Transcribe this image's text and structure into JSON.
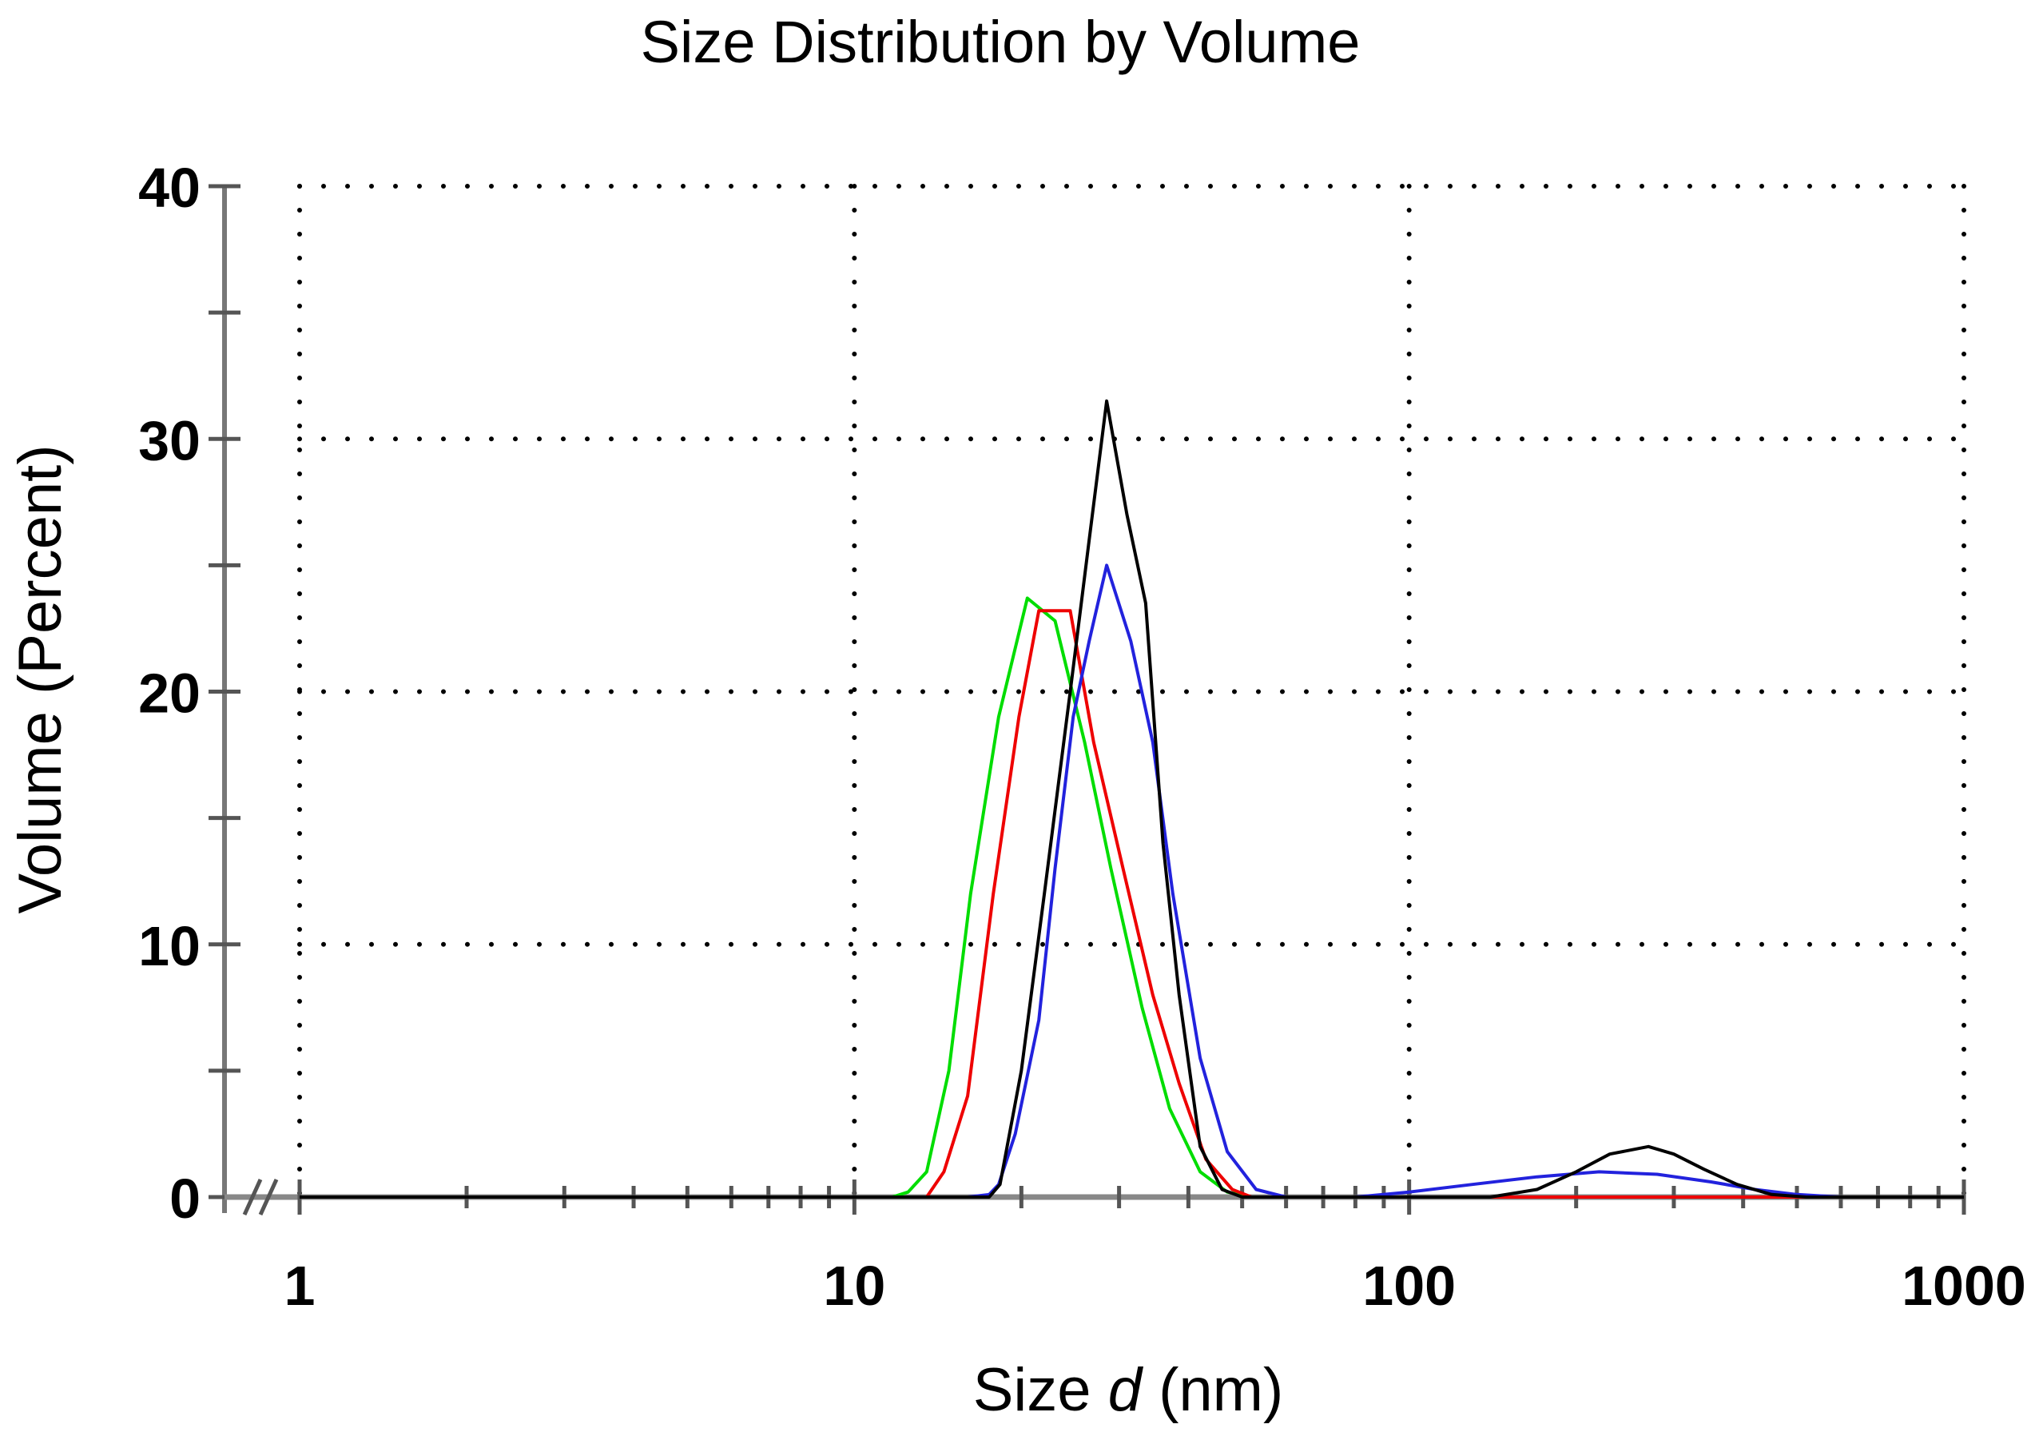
{
  "chart_data": {
    "type": "line",
    "title": "Size Distribution by Volume",
    "xlabel": {
      "prefix": "Size ",
      "var": "d",
      "suffix": " (nm)"
    },
    "ylabel": "Volume (Percent)",
    "xscale": "log",
    "xlim": [
      1,
      1000
    ],
    "ylim": [
      0,
      40
    ],
    "x_tick_labels": [
      "1",
      "10",
      "100",
      "1000"
    ],
    "x_tick_values": [
      1,
      10,
      100,
      1000
    ],
    "y_tick_labels": [
      "0",
      "10",
      "20",
      "30",
      "40"
    ],
    "y_tick_values": [
      0,
      10,
      20,
      30,
      40
    ],
    "grid": true,
    "series": [
      {
        "color": "#00dd00",
        "points": [
          [
            1,
            0
          ],
          [
            10,
            0
          ],
          [
            11.7,
            0
          ],
          [
            12.5,
            0.2
          ],
          [
            13.5,
            1
          ],
          [
            14.8,
            5
          ],
          [
            16.2,
            12
          ],
          [
            18.2,
            19
          ],
          [
            20.5,
            23.7
          ],
          [
            23,
            22.8
          ],
          [
            26,
            18
          ],
          [
            29,
            13
          ],
          [
            33,
            7.5
          ],
          [
            37,
            3.5
          ],
          [
            42,
            1
          ],
          [
            47,
            0.2
          ],
          [
            52,
            0
          ],
          [
            100,
            0
          ],
          [
            1000,
            0
          ]
        ]
      },
      {
        "color": "#ee0000",
        "points": [
          [
            1,
            0
          ],
          [
            10,
            0
          ],
          [
            13.5,
            0
          ],
          [
            14.5,
            1
          ],
          [
            16,
            4
          ],
          [
            17.8,
            12
          ],
          [
            19.8,
            19
          ],
          [
            21.5,
            23.2
          ],
          [
            24.5,
            23.2
          ],
          [
            27,
            18
          ],
          [
            30.5,
            13
          ],
          [
            34.5,
            8
          ],
          [
            38.5,
            4.5
          ],
          [
            43,
            1.5
          ],
          [
            48,
            0.3
          ],
          [
            52,
            0
          ],
          [
            100,
            0
          ],
          [
            1000,
            0
          ]
        ]
      },
      {
        "color": "#2222dd",
        "points": [
          [
            1,
            0
          ],
          [
            10,
            0
          ],
          [
            16,
            0
          ],
          [
            17.5,
            0.1
          ],
          [
            18.2,
            0.5
          ],
          [
            19.5,
            2.5
          ],
          [
            21.5,
            7
          ],
          [
            23,
            13
          ],
          [
            24.8,
            19
          ],
          [
            26.5,
            22
          ],
          [
            28.5,
            25
          ],
          [
            31.5,
            22
          ],
          [
            34.5,
            18
          ],
          [
            37.5,
            12
          ],
          [
            42,
            5.5
          ],
          [
            47,
            1.8
          ],
          [
            53,
            0.3
          ],
          [
            60,
            0
          ],
          [
            80,
            0
          ],
          [
            100,
            0.2
          ],
          [
            130,
            0.5
          ],
          [
            170,
            0.8
          ],
          [
            220,
            1
          ],
          [
            280,
            0.9
          ],
          [
            350,
            0.6
          ],
          [
            420,
            0.3
          ],
          [
            500,
            0.1
          ],
          [
            600,
            0
          ],
          [
            1000,
            0
          ]
        ]
      },
      {
        "color": "#000000",
        "points": [
          [
            1,
            0
          ],
          [
            10,
            0
          ],
          [
            17.5,
            0
          ],
          [
            18.3,
            0.5
          ],
          [
            20,
            5
          ],
          [
            22,
            12
          ],
          [
            24.5,
            20
          ],
          [
            26.5,
            26
          ],
          [
            28.5,
            31.5
          ],
          [
            31,
            27
          ],
          [
            33.5,
            23.5
          ],
          [
            36,
            14
          ],
          [
            38.5,
            8
          ],
          [
            42,
            2
          ],
          [
            46,
            0.3
          ],
          [
            50,
            0
          ],
          [
            100,
            0
          ],
          [
            140,
            0
          ],
          [
            170,
            0.3
          ],
          [
            200,
            1
          ],
          [
            230,
            1.7
          ],
          [
            270,
            2
          ],
          [
            300,
            1.7
          ],
          [
            340,
            1.1
          ],
          [
            390,
            0.5
          ],
          [
            450,
            0.1
          ],
          [
            520,
            0
          ],
          [
            1000,
            0
          ]
        ]
      }
    ]
  }
}
